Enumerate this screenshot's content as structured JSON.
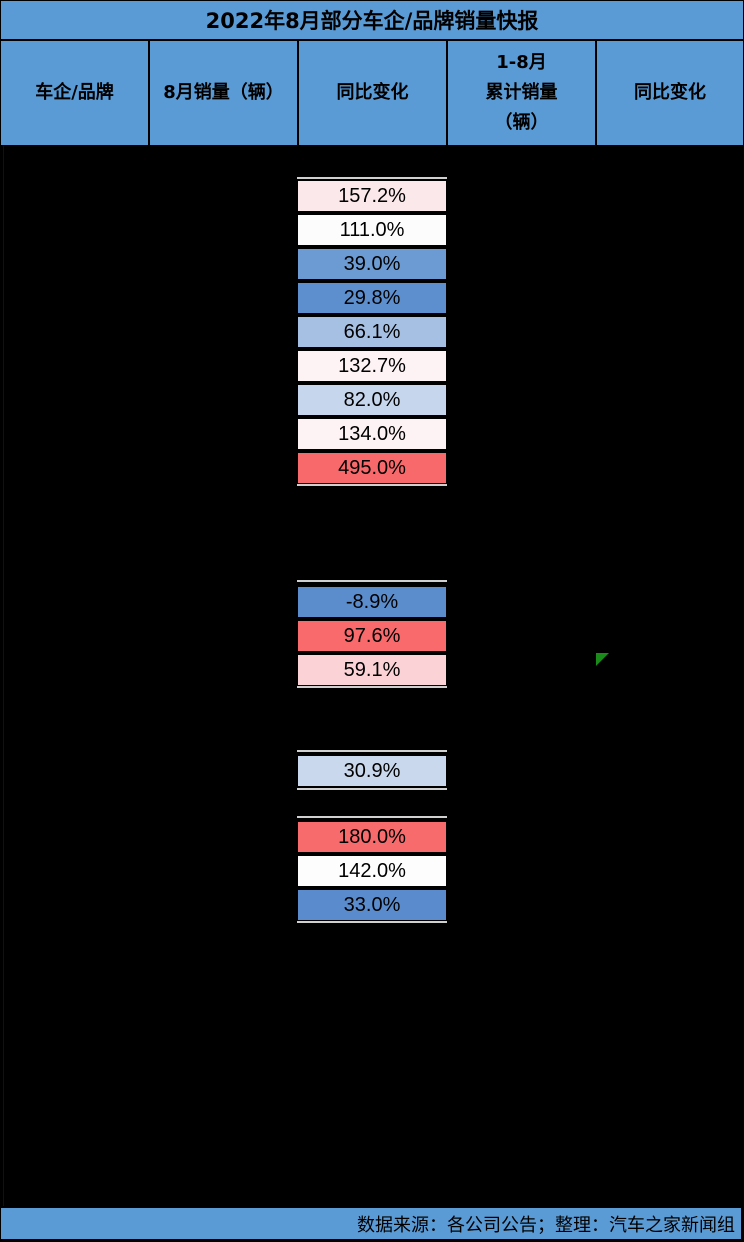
{
  "title": "2022年8月部分车企/品牌销量快报",
  "headers": [
    "车企/品牌",
    "8月销量（辆）",
    "同比变化",
    "1-8月\n累计销量\n（辆）",
    "同比变化"
  ],
  "yoy_cells": [
    {
      "value": "157.2%",
      "color": "#fbe8ea"
    },
    {
      "value": "111.0%",
      "color": "#fdfcfd"
    },
    {
      "value": "39.0%",
      "color": "#6b9bd2"
    },
    {
      "value": "29.8%",
      "color": "#5d8fcf"
    },
    {
      "value": "66.1%",
      "color": "#a6c0e3"
    },
    {
      "value": "132.7%",
      "color": "#fdf3f5"
    },
    {
      "value": "82.0%",
      "color": "#c6d6ec"
    },
    {
      "value": "134.0%",
      "color": "#fdf2f4"
    },
    {
      "value": "495.0%",
      "color": "#f8696b"
    },
    {
      "value": "-8.9%",
      "color": "#5b8dcd"
    },
    {
      "value": "97.6%",
      "color": "#f86a6c"
    },
    {
      "value": "59.1%",
      "color": "#fbd3d7"
    },
    {
      "value": "30.9%",
      "color": "#c9d8ec"
    },
    {
      "value": "180.0%",
      "color": "#f86b6d"
    },
    {
      "value": "142.0%",
      "color": "#fdfdfe"
    },
    {
      "value": "33.0%",
      "color": "#5a8ccd"
    }
  ],
  "footer": "数据来源：各公司公告；整理：汽车之家新闻组"
}
